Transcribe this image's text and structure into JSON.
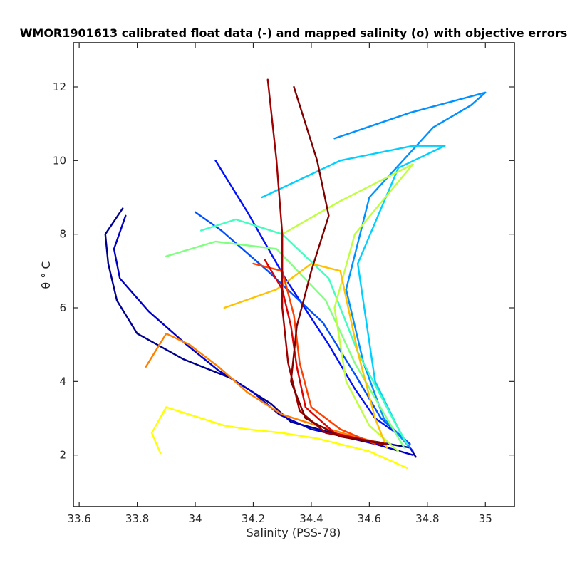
{
  "chart_data": {
    "type": "line",
    "title": "WMOR1901613 calibrated float data (-) and mapped salinity (o) with objective errors",
    "xlabel": "Salinity (PSS-78)",
    "ylabel": "θ ° C",
    "xlim": [
      33.58,
      35.1
    ],
    "ylim": [
      0.6,
      13.2
    ],
    "x_ticks": [
      33.6,
      33.8,
      34,
      34.2,
      34.4,
      34.6,
      34.8,
      35
    ],
    "x_tick_labels": [
      "33.6",
      "33.8",
      "34",
      "34.2",
      "34.4",
      "34.6",
      "34.8",
      "35"
    ],
    "y_ticks": [
      2,
      4,
      6,
      8,
      10,
      12
    ],
    "y_tick_labels": [
      "2",
      "4",
      "6",
      "8",
      "10",
      "12"
    ],
    "grid": false,
    "colormap": "jet",
    "series": [
      {
        "color": "#00008f",
        "x": [
          33.75,
          33.69,
          33.7,
          33.73,
          33.8,
          33.96,
          34.12,
          34.26,
          34.33,
          34.52,
          34.74,
          34.76
        ],
        "y": [
          8.7,
          8.0,
          7.2,
          6.2,
          5.3,
          4.6,
          4.1,
          3.4,
          2.9,
          2.5,
          2.2,
          1.95
        ]
      },
      {
        "color": "#0000c8",
        "x": [
          33.76,
          33.72,
          33.74,
          33.84,
          33.97,
          34.08,
          34.2,
          34.29,
          34.4,
          34.62,
          34.75
        ],
        "y": [
          8.5,
          7.6,
          6.8,
          5.9,
          5.0,
          4.3,
          3.7,
          3.1,
          2.7,
          2.3,
          2.0
        ]
      },
      {
        "color": "#0010ff",
        "x": [
          34.07,
          34.18,
          34.31,
          34.46,
          34.55,
          34.62,
          34.71,
          34.75
        ],
        "y": [
          10.0,
          8.6,
          6.8,
          5.0,
          3.8,
          3.0,
          2.5,
          2.1
        ]
      },
      {
        "color": "#0050ff",
        "x": [
          34.0,
          34.09,
          34.25,
          34.44,
          34.55,
          34.64,
          34.74
        ],
        "y": [
          8.6,
          8.1,
          7.0,
          5.6,
          4.2,
          3.0,
          2.3
        ]
      },
      {
        "color": "#0090ff",
        "x": [
          34.48,
          34.74,
          35.0,
          34.95,
          34.82,
          34.6,
          34.52,
          34.58,
          34.65,
          34.74
        ],
        "y": [
          10.6,
          11.3,
          11.85,
          11.5,
          10.9,
          9.0,
          6.5,
          4.5,
          3.0,
          2.2
        ]
      },
      {
        "color": "#00d0ff",
        "x": [
          34.23,
          34.5,
          34.75,
          34.86,
          34.7,
          34.56,
          34.62,
          34.72
        ],
        "y": [
          9.0,
          10.0,
          10.4,
          10.4,
          9.8,
          7.2,
          4.0,
          2.4
        ]
      },
      {
        "color": "#40ffbf",
        "x": [
          34.02,
          34.14,
          34.3,
          34.46,
          34.56,
          34.68,
          34.73
        ],
        "y": [
          8.1,
          8.4,
          8.0,
          6.8,
          4.8,
          3.0,
          2.3
        ]
      },
      {
        "color": "#80ff80",
        "x": [
          33.9,
          34.07,
          34.28,
          34.45,
          34.55,
          34.66,
          34.72
        ],
        "y": [
          7.4,
          7.8,
          7.6,
          6.2,
          4.5,
          3.0,
          2.2
        ]
      },
      {
        "color": "#c0ff40",
        "x": [
          34.3,
          34.5,
          34.75,
          34.55,
          34.48,
          34.52,
          34.6,
          34.7
        ],
        "y": [
          8.0,
          8.9,
          9.9,
          8.0,
          6.0,
          4.0,
          2.8,
          2.1
        ]
      },
      {
        "color": "#ffff00",
        "x": [
          33.88,
          33.85,
          33.9,
          33.98,
          34.1,
          34.18,
          34.3,
          34.42,
          34.6,
          34.73
        ],
        "y": [
          2.05,
          2.6,
          3.3,
          3.1,
          2.8,
          2.7,
          2.6,
          2.45,
          2.1,
          1.65
        ]
      },
      {
        "color": "#ffc000",
        "x": [
          34.1,
          34.28,
          34.4,
          34.5,
          34.56,
          34.62,
          34.66
        ],
        "y": [
          6.0,
          6.5,
          7.2,
          7.0,
          4.8,
          3.0,
          2.2
        ]
      },
      {
        "color": "#ff8000",
        "x": [
          33.83,
          33.9,
          33.98,
          34.08,
          34.18,
          34.3,
          34.42,
          34.55,
          34.65
        ],
        "y": [
          4.4,
          5.3,
          5.0,
          4.4,
          3.7,
          3.1,
          2.8,
          2.5,
          2.3
        ]
      },
      {
        "color": "#ff4000",
        "x": [
          34.2,
          34.3,
          34.34,
          34.36,
          34.4,
          34.5,
          34.62
        ],
        "y": [
          7.2,
          7.0,
          5.8,
          4.5,
          3.3,
          2.7,
          2.3
        ]
      },
      {
        "color": "#e00000",
        "x": [
          34.24,
          34.3,
          34.33,
          34.35,
          34.38,
          34.48,
          34.64
        ],
        "y": [
          7.3,
          6.5,
          5.5,
          4.4,
          3.3,
          2.6,
          2.3
        ]
      },
      {
        "color": "#a00000",
        "x": [
          34.25,
          34.28,
          34.3,
          34.3,
          34.32,
          34.36,
          34.45,
          34.66
        ],
        "y": [
          12.2,
          10.0,
          8.0,
          6.0,
          4.5,
          3.2,
          2.6,
          2.3
        ]
      },
      {
        "color": "#800000",
        "x": [
          34.34,
          34.38,
          34.42,
          34.46,
          34.4,
          34.35,
          34.33,
          34.38,
          34.5,
          34.65
        ],
        "y": [
          12.0,
          11.0,
          10.0,
          8.5,
          7.0,
          5.5,
          4.0,
          3.0,
          2.5,
          2.3
        ]
      }
    ]
  }
}
